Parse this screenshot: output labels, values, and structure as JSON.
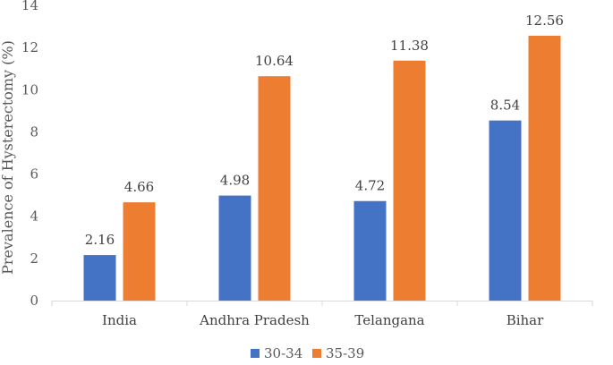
{
  "chart_data": {
    "type": "bar",
    "title": "",
    "xlabel": "",
    "ylabel": "Prevalence of Hysterectomy (%)",
    "ylim": [
      0,
      14
    ],
    "yticks": [
      0,
      2,
      4,
      6,
      8,
      10,
      12,
      14
    ],
    "categories": [
      "India",
      "Andhra Pradesh",
      "Telangana",
      "Bihar"
    ],
    "series": [
      {
        "name": "30-34",
        "color": "#4472C4",
        "values": [
          2.16,
          4.98,
          4.72,
          8.54
        ]
      },
      {
        "name": "35-39",
        "color": "#ED7D31",
        "values": [
          4.66,
          10.64,
          11.38,
          12.56
        ]
      }
    ],
    "data_labels": true,
    "grid": false,
    "legend_position": "bottom"
  }
}
